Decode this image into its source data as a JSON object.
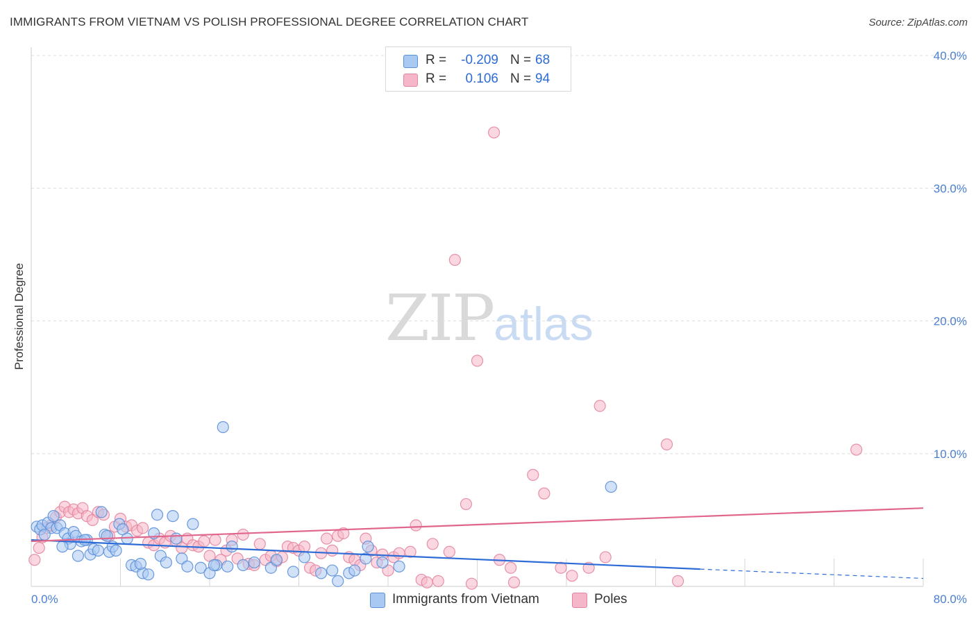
{
  "header": {
    "title": "IMMIGRANTS FROM VIETNAM VS POLISH PROFESSIONAL DEGREE CORRELATION CHART",
    "source": "Source: ZipAtlas.com"
  },
  "watermark": {
    "zip": "ZIP",
    "atlas": "atlas"
  },
  "legend": {
    "rows": [
      {
        "r_label": "R =",
        "r_value": "-0.209",
        "n_label": "N =",
        "n_value": "68",
        "color": "#a9c8f2"
      },
      {
        "r_label": "R =",
        "r_value": "0.106",
        "n_label": "N =",
        "n_value": "94",
        "color": "#f6b6c9"
      }
    ]
  },
  "colors": {
    "blue_fill": "#a9c8f2",
    "blue_stroke": "#5b8fd8",
    "blue_line": "#2d6bd6",
    "pink_fill": "#f6b6c9",
    "pink_stroke": "#e4859f",
    "pink_line": "#e0668b",
    "grid": "#dddddd",
    "tick_label": "#4a7fd0"
  },
  "chart_data": {
    "type": "scatter",
    "title": "IMMIGRANTS FROM VIETNAM VS POLISH PROFESSIONAL DEGREE CORRELATION CHART",
    "xlabel": "",
    "ylabel": "Professional Degree",
    "xlim": [
      0,
      80
    ],
    "ylim": [
      0,
      40
    ],
    "x_tick_labels": [
      "0.0%",
      "80.0%"
    ],
    "y_ticks": [
      10,
      20,
      30,
      40
    ],
    "y_tick_labels": [
      "10.0%",
      "20.0%",
      "30.0%",
      "40.0%"
    ],
    "grid": true,
    "legend_position": "top-center",
    "series": [
      {
        "name": "Immigrants from Vietnam",
        "color": "#a9c8f2",
        "trend": {
          "x": [
            0,
            60
          ],
          "y": [
            3.5,
            1.3
          ],
          "dashed_extension": {
            "x": [
              60,
              80
            ],
            "y": [
              1.3,
              0.6
            ]
          }
        },
        "points": [
          {
            "x": 0.5,
            "y": 4.5
          },
          {
            "x": 0.8,
            "y": 4.3
          },
          {
            "x": 1.0,
            "y": 4.6
          },
          {
            "x": 1.5,
            "y": 4.8
          },
          {
            "x": 1.8,
            "y": 4.4
          },
          {
            "x": 2.0,
            "y": 5.3
          },
          {
            "x": 2.3,
            "y": 4.4
          },
          {
            "x": 2.6,
            "y": 4.6
          },
          {
            "x": 3.0,
            "y": 4.0
          },
          {
            "x": 3.3,
            "y": 3.6
          },
          {
            "x": 3.5,
            "y": 3.2
          },
          {
            "x": 3.8,
            "y": 4.1
          },
          {
            "x": 4.0,
            "y": 3.8
          },
          {
            "x": 4.2,
            "y": 2.3
          },
          {
            "x": 4.5,
            "y": 3.4
          },
          {
            "x": 5.0,
            "y": 3.5
          },
          {
            "x": 5.3,
            "y": 2.4
          },
          {
            "x": 5.6,
            "y": 2.8
          },
          {
            "x": 6.0,
            "y": 2.7
          },
          {
            "x": 6.3,
            "y": 5.6
          },
          {
            "x": 6.6,
            "y": 3.9
          },
          {
            "x": 7.0,
            "y": 2.6
          },
          {
            "x": 7.3,
            "y": 3.0
          },
          {
            "x": 7.6,
            "y": 2.7
          },
          {
            "x": 7.9,
            "y": 4.7
          },
          {
            "x": 8.2,
            "y": 4.3
          },
          {
            "x": 8.6,
            "y": 3.6
          },
          {
            "x": 9.0,
            "y": 1.6
          },
          {
            "x": 9.4,
            "y": 1.5
          },
          {
            "x": 10.0,
            "y": 1.0
          },
          {
            "x": 10.5,
            "y": 0.9
          },
          {
            "x": 11.0,
            "y": 4.0
          },
          {
            "x": 11.3,
            "y": 5.4
          },
          {
            "x": 11.6,
            "y": 2.3
          },
          {
            "x": 12.1,
            "y": 1.8
          },
          {
            "x": 12.7,
            "y": 5.3
          },
          {
            "x": 13.0,
            "y": 3.6
          },
          {
            "x": 13.5,
            "y": 2.1
          },
          {
            "x": 14.0,
            "y": 1.5
          },
          {
            "x": 14.5,
            "y": 4.7
          },
          {
            "x": 15.2,
            "y": 1.4
          },
          {
            "x": 16.0,
            "y": 1.0
          },
          {
            "x": 16.6,
            "y": 1.6
          },
          {
            "x": 17.2,
            "y": 12.0
          },
          {
            "x": 17.6,
            "y": 1.5
          },
          {
            "x": 18.0,
            "y": 3.0
          },
          {
            "x": 19.0,
            "y": 1.6
          },
          {
            "x": 20.0,
            "y": 1.8
          },
          {
            "x": 21.5,
            "y": 1.4
          },
          {
            "x": 22.0,
            "y": 2.0
          },
          {
            "x": 23.5,
            "y": 1.1
          },
          {
            "x": 24.5,
            "y": 2.2
          },
          {
            "x": 26.0,
            "y": 1.0
          },
          {
            "x": 27.0,
            "y": 1.2
          },
          {
            "x": 28.5,
            "y": 1.0
          },
          {
            "x": 29.0,
            "y": 1.2
          },
          {
            "x": 30.0,
            "y": 2.1
          },
          {
            "x": 30.2,
            "y": 3.0
          },
          {
            "x": 31.5,
            "y": 1.8
          },
          {
            "x": 33.0,
            "y": 1.5
          },
          {
            "x": 52.0,
            "y": 7.5
          },
          {
            "x": 1.2,
            "y": 3.9
          },
          {
            "x": 2.8,
            "y": 3.0
          },
          {
            "x": 4.8,
            "y": 3.5
          },
          {
            "x": 6.8,
            "y": 3.8
          },
          {
            "x": 9.8,
            "y": 1.7
          },
          {
            "x": 16.4,
            "y": 1.6
          },
          {
            "x": 27.5,
            "y": 0.4
          }
        ]
      },
      {
        "name": "Poles",
        "color": "#f6b6c9",
        "trend": {
          "x": [
            0,
            80
          ],
          "y": [
            3.4,
            5.9
          ]
        },
        "points": [
          {
            "x": 0.3,
            "y": 2.0
          },
          {
            "x": 0.7,
            "y": 2.9
          },
          {
            "x": 1.0,
            "y": 3.7
          },
          {
            "x": 1.4,
            "y": 4.4
          },
          {
            "x": 1.8,
            "y": 4.6
          },
          {
            "x": 2.2,
            "y": 5.2
          },
          {
            "x": 2.6,
            "y": 5.6
          },
          {
            "x": 3.0,
            "y": 6.0
          },
          {
            "x": 3.4,
            "y": 5.6
          },
          {
            "x": 3.8,
            "y": 5.8
          },
          {
            "x": 4.2,
            "y": 5.5
          },
          {
            "x": 4.6,
            "y": 5.9
          },
          {
            "x": 5.0,
            "y": 5.3
          },
          {
            "x": 5.5,
            "y": 5.0
          },
          {
            "x": 6.0,
            "y": 5.6
          },
          {
            "x": 6.5,
            "y": 5.4
          },
          {
            "x": 7.0,
            "y": 3.8
          },
          {
            "x": 7.5,
            "y": 4.5
          },
          {
            "x": 8.0,
            "y": 5.1
          },
          {
            "x": 8.5,
            "y": 4.5
          },
          {
            "x": 9.0,
            "y": 4.6
          },
          {
            "x": 9.5,
            "y": 4.2
          },
          {
            "x": 10.0,
            "y": 4.4
          },
          {
            "x": 10.5,
            "y": 3.3
          },
          {
            "x": 11.0,
            "y": 3.1
          },
          {
            "x": 11.5,
            "y": 3.6
          },
          {
            "x": 12.0,
            "y": 3.3
          },
          {
            "x": 12.5,
            "y": 3.8
          },
          {
            "x": 13.0,
            "y": 3.4
          },
          {
            "x": 13.5,
            "y": 2.9
          },
          {
            "x": 14.0,
            "y": 3.6
          },
          {
            "x": 14.5,
            "y": 3.1
          },
          {
            "x": 15.0,
            "y": 3.0
          },
          {
            "x": 15.5,
            "y": 3.4
          },
          {
            "x": 16.0,
            "y": 2.3
          },
          {
            "x": 16.5,
            "y": 3.5
          },
          {
            "x": 17.0,
            "y": 2.0
          },
          {
            "x": 17.5,
            "y": 2.7
          },
          {
            "x": 18.0,
            "y": 3.5
          },
          {
            "x": 18.5,
            "y": 2.1
          },
          {
            "x": 19.0,
            "y": 3.9
          },
          {
            "x": 19.5,
            "y": 1.7
          },
          {
            "x": 20.0,
            "y": 1.6
          },
          {
            "x": 20.5,
            "y": 3.2
          },
          {
            "x": 21.0,
            "y": 2.0
          },
          {
            "x": 21.5,
            "y": 2.3
          },
          {
            "x": 22.0,
            "y": 1.9
          },
          {
            "x": 22.5,
            "y": 2.2
          },
          {
            "x": 23.0,
            "y": 3.0
          },
          {
            "x": 23.5,
            "y": 2.9
          },
          {
            "x": 24.0,
            "y": 2.7
          },
          {
            "x": 24.5,
            "y": 3.0
          },
          {
            "x": 25.0,
            "y": 1.4
          },
          {
            "x": 25.5,
            "y": 1.2
          },
          {
            "x": 26.0,
            "y": 2.5
          },
          {
            "x": 26.5,
            "y": 3.6
          },
          {
            "x": 27.0,
            "y": 2.7
          },
          {
            "x": 27.5,
            "y": 3.8
          },
          {
            "x": 28.0,
            "y": 4.0
          },
          {
            "x": 28.5,
            "y": 2.2
          },
          {
            "x": 29.0,
            "y": 2.0
          },
          {
            "x": 29.5,
            "y": 1.6
          },
          {
            "x": 30.0,
            "y": 3.6
          },
          {
            "x": 30.5,
            "y": 2.7
          },
          {
            "x": 31.0,
            "y": 1.8
          },
          {
            "x": 31.5,
            "y": 2.4
          },
          {
            "x": 32.0,
            "y": 1.2
          },
          {
            "x": 32.5,
            "y": 2.2
          },
          {
            "x": 33.0,
            "y": 2.5
          },
          {
            "x": 34.0,
            "y": 2.6
          },
          {
            "x": 34.5,
            "y": 4.6
          },
          {
            "x": 35.0,
            "y": 0.5
          },
          {
            "x": 35.5,
            "y": 0.3
          },
          {
            "x": 36.0,
            "y": 3.2
          },
          {
            "x": 36.5,
            "y": 0.4
          },
          {
            "x": 37.5,
            "y": 2.6
          },
          {
            "x": 38.0,
            "y": 24.6
          },
          {
            "x": 39.0,
            "y": 6.2
          },
          {
            "x": 39.5,
            "y": 0.2
          },
          {
            "x": 40.0,
            "y": 17.0
          },
          {
            "x": 41.5,
            "y": 34.2
          },
          {
            "x": 42.0,
            "y": 2.0
          },
          {
            "x": 43.0,
            "y": 1.4
          },
          {
            "x": 43.3,
            "y": 0.3
          },
          {
            "x": 45.0,
            "y": 8.4
          },
          {
            "x": 46.0,
            "y": 7.0
          },
          {
            "x": 47.5,
            "y": 1.4
          },
          {
            "x": 48.5,
            "y": 0.8
          },
          {
            "x": 50.0,
            "y": 1.4
          },
          {
            "x": 51.0,
            "y": 13.6
          },
          {
            "x": 51.5,
            "y": 2.2
          },
          {
            "x": 57.0,
            "y": 10.7
          },
          {
            "x": 58.0,
            "y": 0.4
          },
          {
            "x": 74.0,
            "y": 10.3
          }
        ]
      }
    ]
  }
}
